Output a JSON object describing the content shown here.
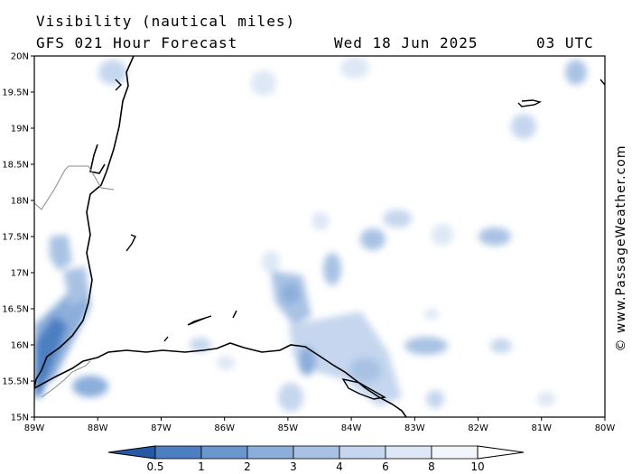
{
  "header": {
    "title": "Visibility (nautical miles)",
    "model": "GFS 021 Hour Forecast",
    "date": "Wed 18 Jun 2025",
    "time": "03 UTC"
  },
  "map": {
    "lat_labels": [
      "20N",
      "19.5N",
      "19N",
      "18.5N",
      "18N",
      "17.5N",
      "17N",
      "16.5N",
      "16N",
      "15.5N",
      "15N"
    ],
    "lon_labels": [
      "89W",
      "88W",
      "87W",
      "86W",
      "85W",
      "84W",
      "83W",
      "82W",
      "81W",
      "80W"
    ]
  },
  "legend": {
    "labels": [
      "0.5",
      "1",
      "2",
      "3",
      "4",
      "6",
      "8",
      "10"
    ],
    "colors": [
      "#2f66b1",
      "#4b7fc2",
      "#6b97cf",
      "#8caedb",
      "#a9c2e4",
      "#c5d6ee",
      "#dde7f5",
      "#f2f6fc"
    ]
  },
  "copyright": "© www.PassageWeather.com",
  "colors": {
    "land_outline": "#000000",
    "border": "#888888",
    "background": "#ffffff"
  }
}
